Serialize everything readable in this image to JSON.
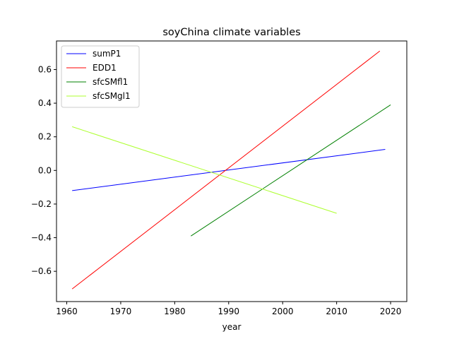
{
  "chart_data": {
    "type": "line",
    "title": "soyChina climate variables",
    "xlabel": "year",
    "ylabel": "",
    "xlim": [
      1958.1,
      2023
    ],
    "ylim": [
      -0.78,
      0.77
    ],
    "xticks": [
      1960,
      1970,
      1980,
      1990,
      2000,
      2010,
      2020
    ],
    "yticks": [
      -0.6,
      -0.4,
      -0.2,
      0.0,
      0.2,
      0.4,
      0.6
    ],
    "ytick_labels": [
      "−0.6",
      "−0.4",
      "−0.2",
      "0.0",
      "0.2",
      "0.4",
      "0.6"
    ],
    "grid": false,
    "legend_position": "top-left",
    "series": [
      {
        "name": "sumP1",
        "color": "#0000ff",
        "x": [
          1961,
          2019
        ],
        "y": [
          -0.12,
          0.125
        ]
      },
      {
        "name": "EDD1",
        "color": "#ff0000",
        "x": [
          1961,
          2018
        ],
        "y": [
          -0.705,
          0.71
        ]
      },
      {
        "name": "sfcSMfl1",
        "color": "#008000",
        "x": [
          1983,
          2020
        ],
        "y": [
          -0.39,
          0.39
        ]
      },
      {
        "name": "sfcSMgl1",
        "color": "#adff2f",
        "x": [
          1961,
          2010
        ],
        "y": [
          0.26,
          -0.255
        ]
      }
    ]
  }
}
